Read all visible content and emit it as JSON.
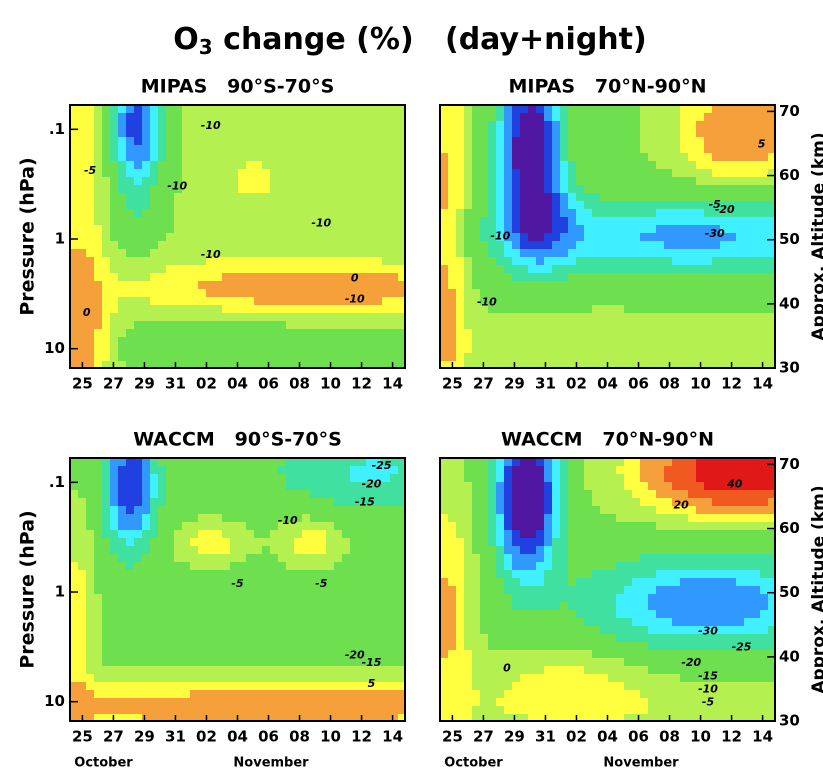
{
  "title_parts": [
    "O",
    "3",
    " change (%)   (day+night)"
  ],
  "chart_data": [
    {
      "type": "contour",
      "title": "MIPAS   90°S-70°S",
      "categories": [
        "25",
        "27",
        "29",
        "31",
        "02",
        "04",
        "06",
        "08",
        "10",
        "12",
        "14"
      ],
      "ylabel": "Pressure (hPa)",
      "ylim": [
        15,
        0.06
      ],
      "log": true,
      "yticks": [
        {
          "value": 0.1,
          "label": ".1"
        },
        1,
        10
      ],
      "annotations": [
        "-10",
        "-5",
        "-10",
        "-10",
        "-10",
        "0",
        "-10",
        "0"
      ]
    },
    {
      "type": "contour",
      "title": "MIPAS   70°N-90°N",
      "categories": [
        "25",
        "27",
        "29",
        "31",
        "02",
        "04",
        "06",
        "08",
        "10",
        "12",
        "14"
      ],
      "ylim": [
        15,
        0.06
      ],
      "log": true,
      "y2label": "Approx. Altitude (km)",
      "y2lim": [
        30,
        71
      ],
      "y2ticks": [
        30,
        40,
        50,
        60,
        70
      ],
      "annotations": [
        "-5",
        "-10",
        "-20",
        "-30",
        "-10",
        "5"
      ]
    },
    {
      "type": "contour",
      "title": "WACCM   90°S-70°S",
      "categories": [
        "25",
        "27",
        "29",
        "31",
        "02",
        "04",
        "06",
        "08",
        "10",
        "12",
        "14"
      ],
      "ylabel": "Pressure (hPa)",
      "ylim": [
        15,
        0.06
      ],
      "log": true,
      "yticks": [
        {
          "value": 0.1,
          "label": ".1"
        },
        1,
        10
      ],
      "month_labels": [
        "October",
        "November"
      ],
      "annotations": [
        "-25",
        "-20",
        "-15",
        "-10",
        "-5",
        "-5",
        "-20",
        "-15",
        "5"
      ]
    },
    {
      "type": "contour",
      "title": "WACCM   70°N-90°N",
      "categories": [
        "25",
        "27",
        "29",
        "31",
        "02",
        "04",
        "06",
        "08",
        "10",
        "12",
        "14"
      ],
      "ylim": [
        15,
        0.06
      ],
      "log": true,
      "y2label": "Approx. Altitude (km)",
      "y2lim": [
        30,
        71
      ],
      "y2ticks": [
        30,
        40,
        50,
        60,
        70
      ],
      "month_labels": [
        "October",
        "November"
      ],
      "annotations": [
        "40",
        "20",
        "-30",
        "-25",
        "-20",
        "-15",
        "-10",
        "-5",
        "0"
      ]
    }
  ]
}
